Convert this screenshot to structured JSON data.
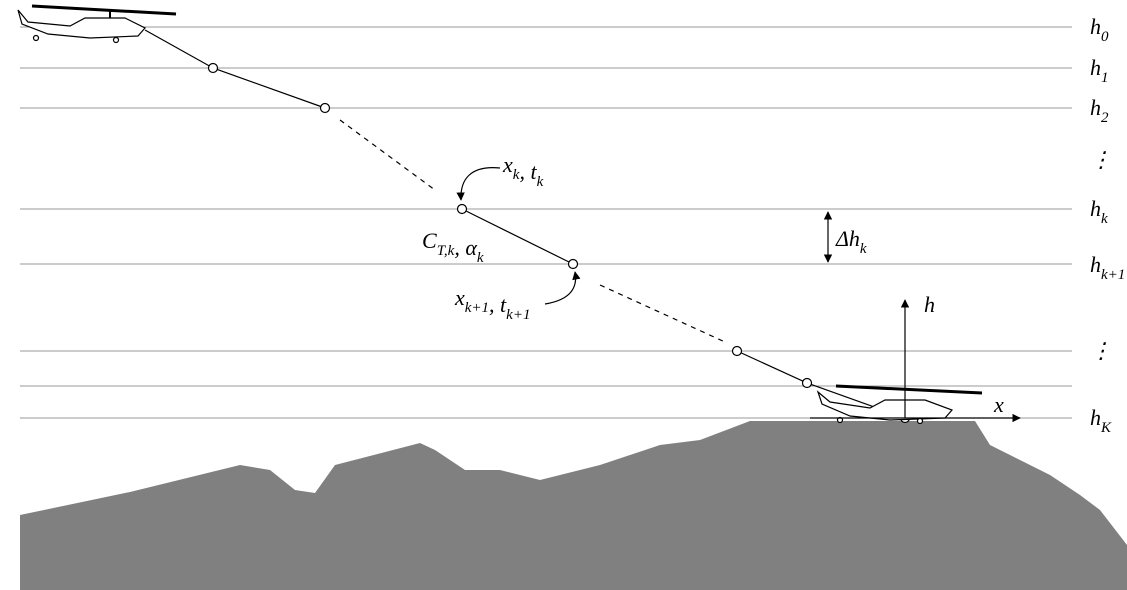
{
  "level_labels": [
    [
      {
        "text": "h",
        "sub": "0"
      }
    ],
    [
      {
        "text": "h",
        "sub": "1"
      }
    ],
    [
      {
        "text": "h",
        "sub": "2"
      }
    ],
    [
      {
        "text": "⋮"
      }
    ],
    [
      {
        "text": "h",
        "sub": "k"
      }
    ],
    [
      {
        "text": "h",
        "sub": "k+1"
      }
    ],
    [
      {
        "text": "⋮"
      }
    ],
    [
      {
        "text": "h",
        "sub": "K"
      }
    ]
  ],
  "annotations": {
    "point_k": [
      {
        "text": "x",
        "sub": "k"
      },
      {
        "text": ", "
      },
      {
        "text": "t",
        "sub": "k"
      }
    ],
    "controls": [
      {
        "text": "C",
        "sub": "T,k"
      },
      {
        "text": ", α",
        "sub": "k"
      }
    ],
    "point_k_next": [
      {
        "text": "x",
        "sub": "k+1"
      },
      {
        "text": ", "
      },
      {
        "text": "t",
        "sub": "k+1"
      }
    ],
    "step": [
      {
        "text": "Δ"
      },
      {
        "text": "h",
        "sub": "k"
      }
    ]
  },
  "axes": {
    "vertical": [
      {
        "text": "h"
      }
    ],
    "horizontal": [
      {
        "text": "x"
      }
    ]
  }
}
